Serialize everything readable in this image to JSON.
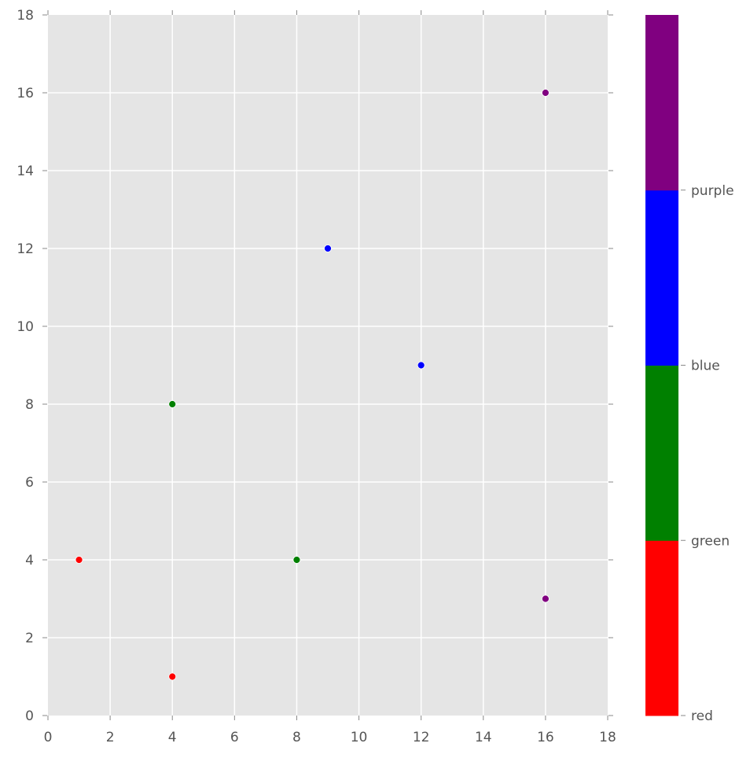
{
  "chart_data": {
    "type": "scatter",
    "title": "",
    "xlabel": "",
    "ylabel": "",
    "xlim": [
      0,
      18
    ],
    "ylim": [
      0,
      18
    ],
    "grid": true,
    "style": "ggplot",
    "x_ticks": [
      0,
      2,
      4,
      6,
      8,
      10,
      12,
      14,
      16,
      18
    ],
    "y_ticks": [
      0,
      2,
      4,
      6,
      8,
      10,
      12,
      14,
      16,
      18
    ],
    "points": [
      {
        "x": 1,
        "y": 4,
        "category": "red"
      },
      {
        "x": 4,
        "y": 1,
        "category": "red"
      },
      {
        "x": 4,
        "y": 8,
        "category": "green"
      },
      {
        "x": 8,
        "y": 4,
        "category": "green"
      },
      {
        "x": 9,
        "y": 12,
        "category": "blue"
      },
      {
        "x": 12,
        "y": 9,
        "category": "blue"
      },
      {
        "x": 16,
        "y": 16,
        "category": "purple"
      },
      {
        "x": 16,
        "y": 3,
        "category": "purple"
      }
    ],
    "series": [
      {
        "name": "red",
        "x": [
          1,
          4
        ],
        "y": [
          4,
          1
        ]
      },
      {
        "name": "green",
        "x": [
          4,
          8
        ],
        "y": [
          8,
          4
        ]
      },
      {
        "name": "blue",
        "x": [
          9,
          12
        ],
        "y": [
          12,
          9
        ]
      },
      {
        "name": "purple",
        "x": [
          16,
          16
        ],
        "y": [
          16,
          3
        ]
      }
    ],
    "colorbar": {
      "segments": [
        "red",
        "green",
        "blue",
        "purple"
      ],
      "tick_labels": [
        "red",
        "green",
        "blue",
        "purple"
      ],
      "orientation": "vertical",
      "position": "right"
    }
  },
  "colors": {
    "red": "#ff0000",
    "green": "#008000",
    "blue": "#0000ff",
    "purple": "#800080",
    "plot_background": "#e5e5e5",
    "grid": "#ffffff",
    "tick_text": "#555555"
  }
}
